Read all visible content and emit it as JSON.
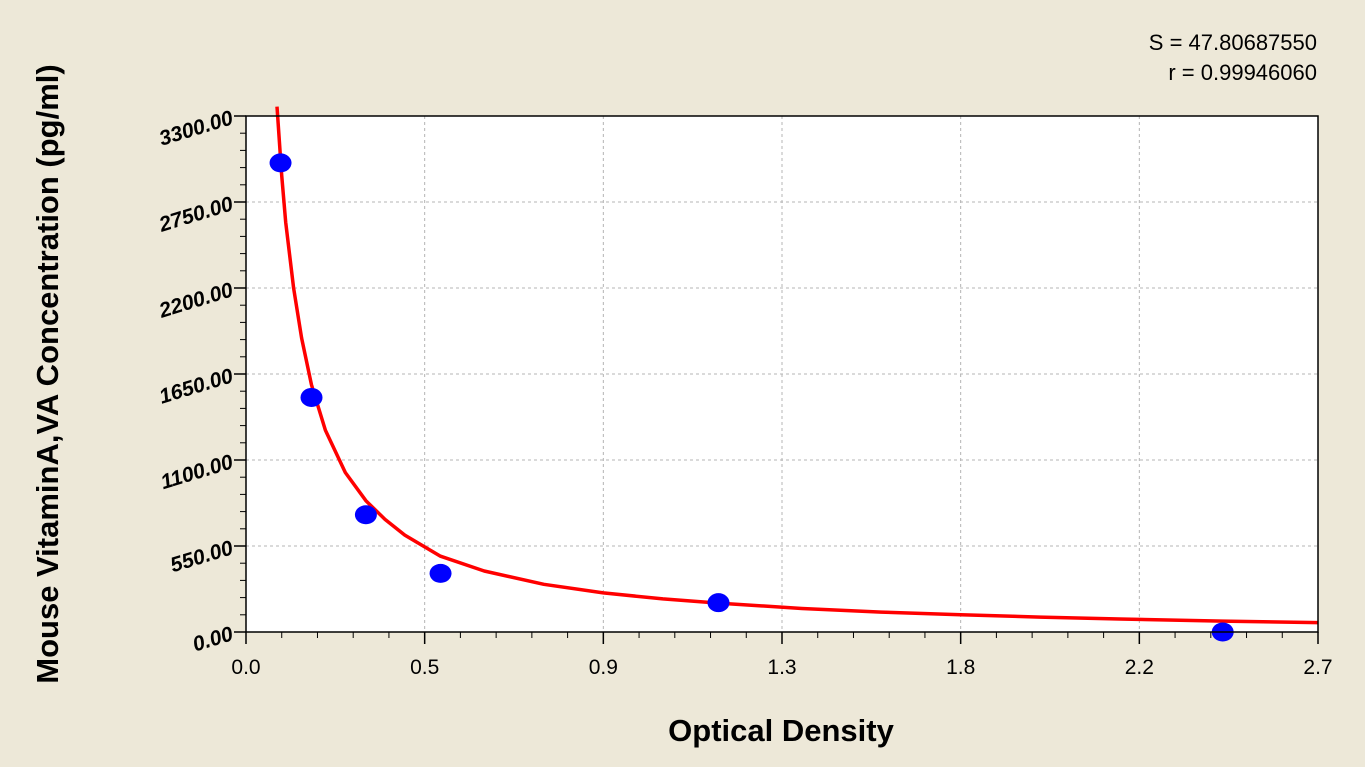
{
  "chart_data": {
    "type": "scatter",
    "title": "",
    "xlabel": "Optical Density",
    "ylabel": "Mouse VitaminA,VA Concentration (pg/ml)",
    "xlim": [
      0.0,
      2.7
    ],
    "ylim": [
      0,
      3300
    ],
    "x_ticks": [
      "0.0",
      "0.5",
      "0.9",
      "1.3",
      "1.8",
      "2.2",
      "2.7"
    ],
    "x_tick_values": [
      0.0,
      0.45,
      0.9,
      1.35,
      1.8,
      2.25,
      2.7
    ],
    "y_ticks": [
      "0.00",
      "550.00",
      "1100.00",
      "1650.00",
      "2200.00",
      "2750.00",
      "3300.00"
    ],
    "y_tick_values": [
      0,
      550,
      1100,
      1650,
      2200,
      2750,
      3300
    ],
    "grid": true,
    "series": [
      {
        "type": "scatter",
        "color": "#0000ff",
        "x": [
          0.087,
          0.165,
          0.302,
          0.49,
          1.19,
          2.46
        ],
        "y": [
          3000,
          1500,
          750,
          375,
          187.5,
          0
        ]
      },
      {
        "type": "line",
        "color": "#ff0000",
        "x": [
          0.078,
          0.09,
          0.1,
          0.12,
          0.14,
          0.165,
          0.2,
          0.25,
          0.302,
          0.35,
          0.4,
          0.49,
          0.6,
          0.75,
          0.9,
          1.05,
          1.19,
          1.4,
          1.6,
          1.8,
          2.0,
          2.2,
          2.46,
          2.7
        ],
        "y": [
          3360,
          2920,
          2620,
          2200,
          1880,
          1580,
          1290,
          1020,
          840,
          720,
          620,
          485,
          390,
          305,
          250,
          212,
          185,
          150,
          127,
          110,
          95,
          83,
          70,
          60
        ]
      }
    ],
    "annotations": [
      "S = 47.80687550",
      "r = 0.99946060"
    ]
  }
}
